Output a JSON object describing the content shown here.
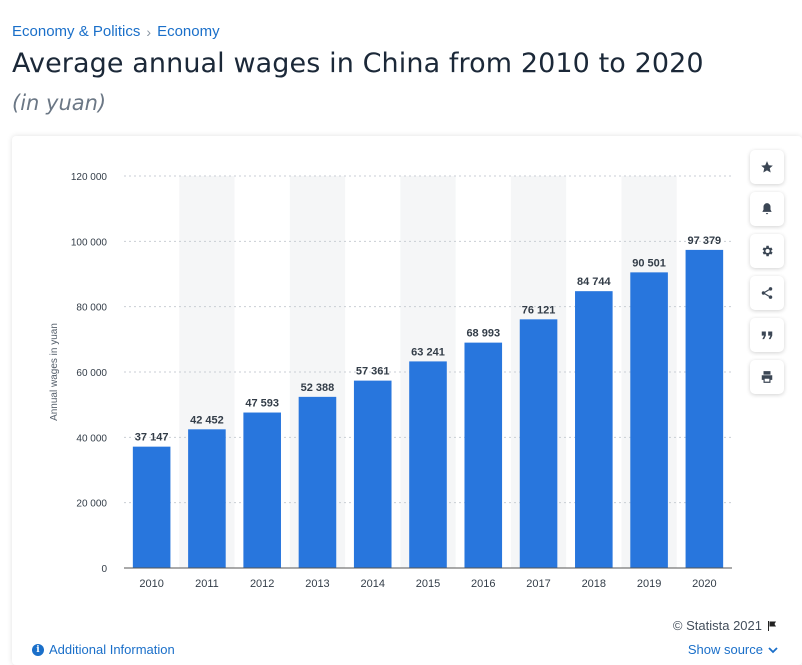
{
  "breadcrumb": {
    "items": [
      "Economy & Politics",
      "Economy"
    ],
    "separator": "›"
  },
  "page": {
    "title": "Average annual wages in China from 2010 to 2020",
    "subtitle": "(in yuan)"
  },
  "toolbar": {
    "icons": [
      "star-icon",
      "bell-icon",
      "gear-icon",
      "share-icon",
      "quote-icon",
      "print-icon"
    ]
  },
  "footer": {
    "copyright": "© Statista 2021",
    "additional_info": "Additional Information",
    "show_source": "Show source"
  },
  "colors": {
    "bar": "#2876dd",
    "link": "#1a6fc9",
    "alt_band": "#f5f6f7"
  },
  "chart_data": {
    "type": "bar",
    "categories": [
      "2010",
      "2011",
      "2012",
      "2013",
      "2014",
      "2015",
      "2016",
      "2017",
      "2018",
      "2019",
      "2020"
    ],
    "values": [
      37147,
      42452,
      47593,
      52388,
      57361,
      63241,
      68993,
      76121,
      84744,
      90501,
      97379
    ],
    "value_labels": [
      "37 147",
      "42 452",
      "47 593",
      "52 388",
      "57 361",
      "63 241",
      "68 993",
      "76 121",
      "84 744",
      "90 501",
      "97 379"
    ],
    "title": "Average annual wages in China from 2010 to 2020",
    "xlabel": "",
    "ylabel": "Annual wages in yuan",
    "ylim": [
      0,
      120000
    ],
    "yticks": [
      0,
      20000,
      40000,
      60000,
      80000,
      100000,
      120000
    ],
    "ytick_labels": [
      "0",
      "20 000",
      "40 000",
      "60 000",
      "80 000",
      "100 000",
      "120 000"
    ],
    "grid": true
  }
}
